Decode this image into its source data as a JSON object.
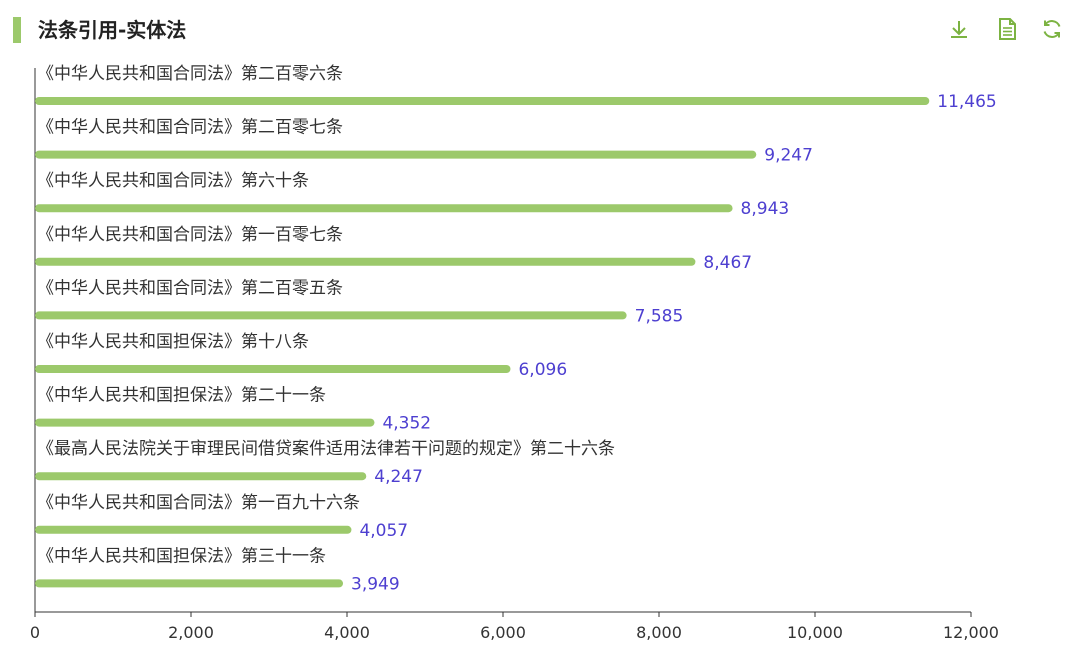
{
  "header": {
    "title": "法条引用-实体法"
  },
  "toolbar": {
    "icons": [
      "download-icon",
      "document-icon",
      "refresh-icon"
    ]
  },
  "colors": {
    "accent": "#9cc96b",
    "bar": "#9cc96b",
    "value_label": "#4d3fd0",
    "axis": "#333333"
  },
  "chart_data": {
    "type": "bar",
    "orientation": "horizontal",
    "title": "法条引用-实体法",
    "xlabel": "",
    "ylabel": "",
    "xlim": [
      0,
      12000
    ],
    "x_ticks": [
      "0",
      "2,000",
      "4,000",
      "6,000",
      "8,000",
      "10,000",
      "12,000"
    ],
    "grid": false,
    "legend": "none",
    "categories": [
      "《中华人民共和国合同法》第二百零六条",
      "《中华人民共和国合同法》第二百零七条",
      "《中华人民共和国合同法》第六十条",
      "《中华人民共和国合同法》第一百零七条",
      "《中华人民共和国合同法》第二百零五条",
      "《中华人民共和国担保法》第十八条",
      "《中华人民共和国担保法》第二十一条",
      "《最高人民法院关于审理民间借贷案件适用法律若干问题的规定》第二十六条",
      "《中华人民共和国合同法》第一百九十六条",
      "《中华人民共和国担保法》第三十一条"
    ],
    "values": [
      11465,
      9247,
      8943,
      8467,
      7585,
      6096,
      4352,
      4247,
      4057,
      3949
    ],
    "value_labels": [
      "11,465",
      "9,247",
      "8,943",
      "8,467",
      "7,585",
      "6,096",
      "4,352",
      "4,247",
      "4,057",
      "3,949"
    ]
  }
}
